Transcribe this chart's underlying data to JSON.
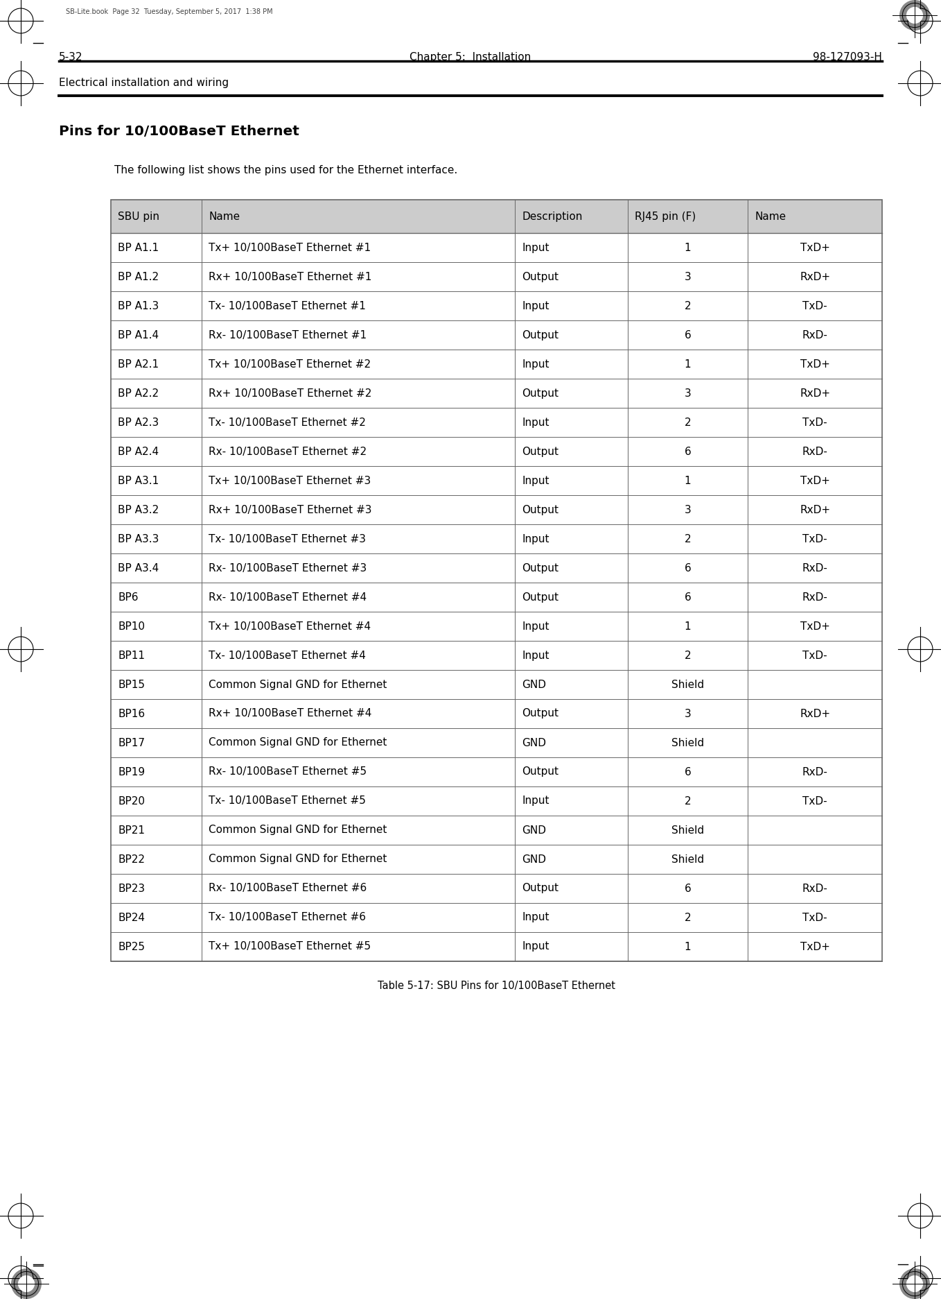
{
  "page_header_left": "Electrical installation and wiring",
  "page_header_stamp": "SB-Lite.book  Page 32  Tuesday, September 5, 2017  1:38 PM",
  "section_title": "Pins for 10/100BaseT Ethernet",
  "intro_text": "The following list shows the pins used for the Ethernet interface.",
  "table_caption": "Table 5-17: SBU Pins for 10/100BaseT Ethernet",
  "footer_left": "5-32",
  "footer_center": "Chapter 5:  Installation",
  "footer_right": "98-127093-H",
  "col_headers": [
    "SBU pin",
    "Name",
    "Description",
    "RJ45 pin (F)",
    "Name"
  ],
  "header_bg": "#cccccc",
  "rows": [
    [
      "BP A1.1",
      "Tx+ 10/100BaseT Ethernet #1",
      "Input",
      "1",
      "TxD+"
    ],
    [
      "BP A1.2",
      "Rx+ 10/100BaseT Ethernet #1",
      "Output",
      "3",
      "RxD+"
    ],
    [
      "BP A1.3",
      "Tx- 10/100BaseT Ethernet #1",
      "Input",
      "2",
      "TxD-"
    ],
    [
      "BP A1.4",
      "Rx- 10/100BaseT Ethernet #1",
      "Output",
      "6",
      "RxD-"
    ],
    [
      "BP A2.1",
      "Tx+ 10/100BaseT Ethernet #2",
      "Input",
      "1",
      "TxD+"
    ],
    [
      "BP A2.2",
      "Rx+ 10/100BaseT Ethernet #2",
      "Output",
      "3",
      "RxD+"
    ],
    [
      "BP A2.3",
      "Tx- 10/100BaseT Ethernet #2",
      "Input",
      "2",
      "TxD-"
    ],
    [
      "BP A2.4",
      "Rx- 10/100BaseT Ethernet #2",
      "Output",
      "6",
      "RxD-"
    ],
    [
      "BP A3.1",
      "Tx+ 10/100BaseT Ethernet #3",
      "Input",
      "1",
      "TxD+"
    ],
    [
      "BP A3.2",
      "Rx+ 10/100BaseT Ethernet #3",
      "Output",
      "3",
      "RxD+"
    ],
    [
      "BP A3.3",
      "Tx- 10/100BaseT Ethernet #3",
      "Input",
      "2",
      "TxD-"
    ],
    [
      "BP A3.4",
      "Rx- 10/100BaseT Ethernet #3",
      "Output",
      "6",
      "RxD-"
    ],
    [
      "BP6",
      "Rx- 10/100BaseT Ethernet #4",
      "Output",
      "6",
      "RxD-"
    ],
    [
      "BP10",
      "Tx+ 10/100BaseT Ethernet #4",
      "Input",
      "1",
      "TxD+"
    ],
    [
      "BP11",
      "Tx- 10/100BaseT Ethernet #4",
      "Input",
      "2",
      "TxD-"
    ],
    [
      "BP15",
      "Common Signal GND for Ethernet",
      "GND",
      "Shield",
      ""
    ],
    [
      "BP16",
      "Rx+ 10/100BaseT Ethernet #4",
      "Output",
      "3",
      "RxD+"
    ],
    [
      "BP17",
      "Common Signal GND for Ethernet",
      "GND",
      "Shield",
      ""
    ],
    [
      "BP19",
      "Rx- 10/100BaseT Ethernet #5",
      "Output",
      "6",
      "RxD-"
    ],
    [
      "BP20",
      "Tx- 10/100BaseT Ethernet #5",
      "Input",
      "2",
      "TxD-"
    ],
    [
      "BP21",
      "Common Signal GND for Ethernet",
      "GND",
      "Shield",
      ""
    ],
    [
      "BP22",
      "Common Signal GND for Ethernet",
      "GND",
      "Shield",
      ""
    ],
    [
      "BP23",
      "Rx- 10/100BaseT Ethernet #6",
      "Output",
      "6",
      "RxD-"
    ],
    [
      "BP24",
      "Tx- 10/100BaseT Ethernet #6",
      "Input",
      "2",
      "TxD-"
    ],
    [
      "BP25",
      "Tx+ 10/100BaseT Ethernet #5",
      "Input",
      "1",
      "TxD+"
    ]
  ],
  "bg_color": "#ffffff",
  "text_color": "#000000",
  "table_border_color": "#666666"
}
